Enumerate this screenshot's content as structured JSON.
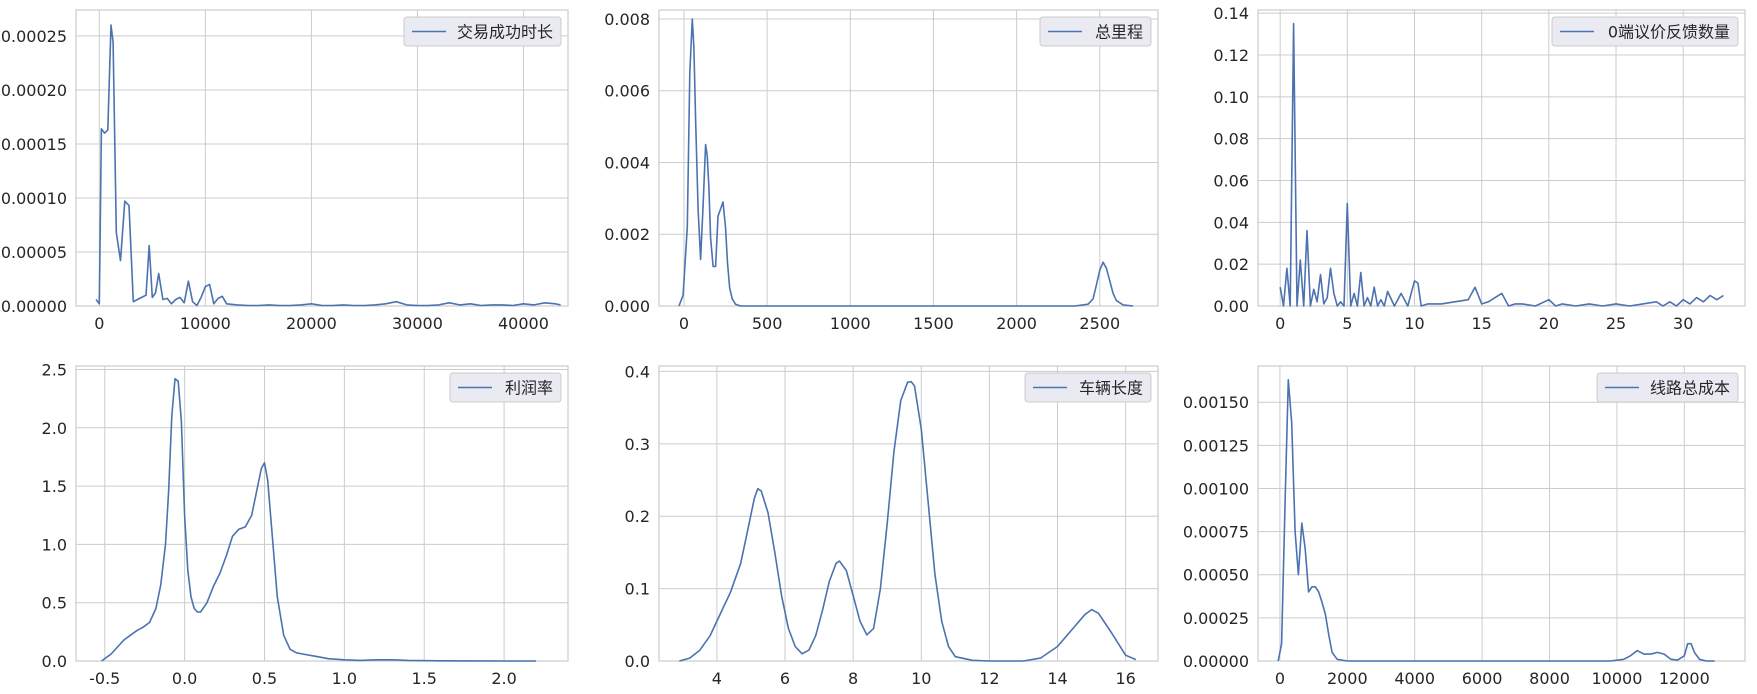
{
  "chart_data": [
    {
      "type": "line",
      "legend": "交易成功时长",
      "xticks": [
        "0",
        "10000",
        "20000",
        "30000",
        "40000"
      ],
      "xtick_values": [
        0,
        10000,
        20000,
        30000,
        40000
      ],
      "yticks": [
        "0.00000",
        "0.00005",
        "0.00010",
        "0.00015",
        "0.00020",
        "0.00025"
      ],
      "ytick_values": [
        0,
        5e-05,
        0.0001,
        0.00015,
        0.0002,
        0.00025
      ],
      "xlim": [
        -2200,
        44200
      ],
      "ylim": [
        0,
        0.000274
      ],
      "legend_position": "top-right",
      "color": "#4c72b0",
      "series": [
        {
          "x": [
            -300,
            0,
            200,
            500,
            800,
            1100,
            1300,
            1600,
            2000,
            2400,
            2800,
            3200,
            3600,
            4000,
            4400,
            4700,
            5000,
            5300,
            5600,
            6000,
            6400,
            6800,
            7200,
            7600,
            8000,
            8400,
            8800,
            9200,
            9600,
            10000,
            10400,
            10800,
            11200,
            11600,
            12000,
            13000,
            14000,
            15000,
            16000,
            17000,
            18000,
            19000,
            20000,
            21000,
            22000,
            23000,
            24000,
            25000,
            26000,
            27000,
            28000,
            29000,
            30000,
            31000,
            32000,
            33000,
            34000,
            35000,
            36000,
            37000,
            38000,
            39000,
            40000,
            41000,
            42000,
            43000,
            43500
          ],
          "y": [
            6e-06,
            2e-06,
            0.000164,
            0.00016,
            0.000163,
            0.00026,
            0.000244,
            6.8e-05,
            4.2e-05,
            9.7e-05,
            9.3e-05,
            4e-06,
            6e-06,
            8e-06,
            1e-05,
            5.6e-05,
            8e-06,
            1.2e-05,
            3e-05,
            6e-06,
            7e-06,
            2e-06,
            6e-06,
            8e-06,
            3e-06,
            2.3e-05,
            4e-06,
            5e-07,
            8e-06,
            1.8e-05,
            2e-05,
            2e-06,
            7e-06,
            9e-06,
            2e-06,
            1e-06,
            5e-07,
            5e-07,
            1e-06,
            5e-07,
            5e-07,
            1e-06,
            2e-06,
            5e-07,
            5e-07,
            1e-06,
            5e-07,
            5e-07,
            1e-06,
            2e-06,
            4e-06,
            1e-06,
            5e-07,
            5e-07,
            1e-06,
            3e-06,
            1e-06,
            2e-06,
            5e-07,
            1e-06,
            1e-06,
            5e-07,
            2e-06,
            1e-06,
            3e-06,
            2e-06,
            1e-06
          ]
        }
      ]
    },
    {
      "type": "line",
      "legend": "总里程",
      "xticks": [
        "0",
        "500",
        "1000",
        "1500",
        "2000",
        "2500"
      ],
      "xtick_values": [
        0,
        500,
        1000,
        1500,
        2000,
        2500
      ],
      "yticks": [
        "0.000",
        "0.002",
        "0.004",
        "0.006",
        "0.008"
      ],
      "ytick_values": [
        0,
        0.002,
        0.004,
        0.006,
        0.008
      ],
      "xlim": [
        -150,
        2850
      ],
      "ylim": [
        0,
        0.00825
      ],
      "legend_position": "top-right",
      "color": "#4c72b0",
      "series": [
        {
          "x": [
            -30,
            -5,
            20,
            35,
            50,
            60,
            70,
            85,
            100,
            115,
            130,
            140,
            150,
            160,
            175,
            190,
            205,
            220,
            235,
            250,
            262,
            275,
            290,
            310,
            340,
            400,
            600,
            1000,
            1500,
            2000,
            2350,
            2430,
            2460,
            2480,
            2500,
            2520,
            2540,
            2560,
            2580,
            2600,
            2640,
            2700
          ],
          "y": [
            0.0,
            0.0003,
            0.0022,
            0.0065,
            0.008,
            0.0072,
            0.0052,
            0.0027,
            0.0013,
            0.0028,
            0.0045,
            0.0042,
            0.0033,
            0.0019,
            0.0011,
            0.0011,
            0.0025,
            0.0027,
            0.0029,
            0.0022,
            0.0012,
            0.0005,
            0.0002,
            5e-05,
            0.0,
            0.0,
            0.0,
            0.0,
            0.0,
            0.0,
            0.0,
            5e-05,
            0.0002,
            0.0006,
            0.001,
            0.00122,
            0.00105,
            0.0007,
            0.00035,
            0.00015,
            3e-05,
            0.0
          ]
        }
      ]
    },
    {
      "type": "line",
      "legend": "0端议价反馈数量",
      "xticks": [
        "0",
        "5",
        "10",
        "15",
        "20",
        "25",
        "30"
      ],
      "xtick_values": [
        0,
        5,
        10,
        15,
        20,
        25,
        30
      ],
      "yticks": [
        "0.00",
        "0.02",
        "0.04",
        "0.06",
        "0.08",
        "0.10",
        "0.12",
        "0.14"
      ],
      "ytick_values": [
        0,
        0.02,
        0.04,
        0.06,
        0.08,
        0.1,
        0.12,
        0.14
      ],
      "xlim": [
        -1.65,
        34.6
      ],
      "ylim": [
        0,
        0.1415
      ],
      "legend_position": "top-right",
      "color": "#4c72b0",
      "series": [
        {
          "x": [
            0,
            0.25,
            0.5,
            0.75,
            1.0,
            1.25,
            1.5,
            1.75,
            2.0,
            2.25,
            2.5,
            2.75,
            3.0,
            3.25,
            3.5,
            3.75,
            4.0,
            4.25,
            4.5,
            4.75,
            5.0,
            5.25,
            5.5,
            5.75,
            6.0,
            6.25,
            6.5,
            6.75,
            7.0,
            7.25,
            7.5,
            7.75,
            8.0,
            8.5,
            9.0,
            9.5,
            10.0,
            10.25,
            10.5,
            11,
            12,
            13,
            14,
            14.5,
            15,
            15.5,
            16,
            16.5,
            17,
            17.5,
            18,
            19,
            20,
            20.5,
            21,
            22,
            23,
            24,
            25,
            26,
            27,
            28,
            28.5,
            29,
            29.5,
            30,
            30.5,
            31,
            31.5,
            32,
            32.5,
            33
          ],
          "y": [
            0.009,
            0.0,
            0.018,
            0.0,
            0.135,
            0.0,
            0.022,
            0.0,
            0.036,
            0.0,
            0.008,
            0.002,
            0.015,
            0.001,
            0.004,
            0.018,
            0.006,
            0.0,
            0.002,
            0.0,
            0.049,
            0.0,
            0.006,
            0.0,
            0.016,
            0.0,
            0.004,
            0.0,
            0.009,
            0.0,
            0.003,
            0.0,
            0.007,
            0.0,
            0.006,
            0.0,
            0.012,
            0.011,
            0.0,
            0.001,
            0.001,
            0.002,
            0.003,
            0.009,
            0.001,
            0.002,
            0.004,
            0.006,
            0.0,
            0.001,
            0.001,
            0.0,
            0.003,
            0.0,
            0.001,
            0.0,
            0.001,
            0.0,
            0.001,
            0.0,
            0.001,
            0.002,
            0.0,
            0.002,
            0.0,
            0.003,
            0.001,
            0.004,
            0.002,
            0.005,
            0.003,
            0.005
          ]
        }
      ]
    },
    {
      "type": "line",
      "legend": "利润率",
      "xticks": [
        "-0.5",
        "0.0",
        "0.5",
        "1.0",
        "1.5",
        "2.0"
      ],
      "xtick_values": [
        -0.5,
        0.0,
        0.5,
        1.0,
        1.5,
        2.0
      ],
      "yticks": [
        "0.0",
        "0.5",
        "1.0",
        "1.5",
        "2.0",
        "2.5"
      ],
      "ytick_values": [
        0,
        0.5,
        1.0,
        1.5,
        2.0,
        2.5
      ],
      "xlim": [
        -0.68,
        2.4
      ],
      "ylim": [
        0,
        2.53
      ],
      "legend_position": "top-right",
      "color": "#4c72b0",
      "series": [
        {
          "x": [
            -0.52,
            -0.46,
            -0.42,
            -0.38,
            -0.34,
            -0.3,
            -0.26,
            -0.22,
            -0.18,
            -0.15,
            -0.12,
            -0.1,
            -0.08,
            -0.06,
            -0.04,
            -0.02,
            0.0,
            0.02,
            0.04,
            0.06,
            0.08,
            0.1,
            0.14,
            0.18,
            0.22,
            0.26,
            0.3,
            0.34,
            0.38,
            0.42,
            0.45,
            0.48,
            0.5,
            0.52,
            0.55,
            0.58,
            0.62,
            0.66,
            0.7,
            0.76,
            0.82,
            0.9,
            1.0,
            1.1,
            1.2,
            1.3,
            1.4,
            1.6,
            1.8,
            2.0,
            2.2
          ],
          "y": [
            0.0,
            0.06,
            0.12,
            0.18,
            0.22,
            0.26,
            0.29,
            0.33,
            0.45,
            0.65,
            1.0,
            1.45,
            2.1,
            2.42,
            2.4,
            2.05,
            1.25,
            0.78,
            0.55,
            0.45,
            0.42,
            0.42,
            0.5,
            0.64,
            0.75,
            0.9,
            1.07,
            1.13,
            1.15,
            1.25,
            1.45,
            1.65,
            1.7,
            1.55,
            1.05,
            0.55,
            0.22,
            0.1,
            0.07,
            0.055,
            0.04,
            0.02,
            0.01,
            0.005,
            0.01,
            0.01,
            0.005,
            0.002,
            0.001,
            0.0,
            0.0
          ]
        }
      ]
    },
    {
      "type": "line",
      "legend": "车辆长度",
      "xticks": [
        "4",
        "6",
        "8",
        "10",
        "12",
        "14",
        "16"
      ],
      "xtick_values": [
        4,
        6,
        8,
        10,
        12,
        14,
        16
      ],
      "yticks": [
        "0.0",
        "0.1",
        "0.2",
        "0.3",
        "0.4"
      ],
      "ytick_values": [
        0,
        0.1,
        0.2,
        0.3,
        0.4
      ],
      "xlim": [
        2.3,
        16.95
      ],
      "ylim": [
        0,
        0.4075
      ],
      "legend_position": "top-right",
      "color": "#4c72b0",
      "series": [
        {
          "x": [
            2.9,
            3.2,
            3.5,
            3.8,
            4.1,
            4.4,
            4.7,
            4.9,
            5.1,
            5.2,
            5.3,
            5.5,
            5.7,
            5.9,
            6.1,
            6.3,
            6.5,
            6.7,
            6.9,
            7.1,
            7.3,
            7.5,
            7.6,
            7.8,
            8.0,
            8.2,
            8.4,
            8.6,
            8.8,
            9.0,
            9.2,
            9.4,
            9.6,
            9.7,
            9.8,
            10.0,
            10.2,
            10.4,
            10.6,
            10.8,
            11.0,
            11.5,
            12.0,
            13.0,
            13.5,
            14.0,
            14.4,
            14.8,
            15.0,
            15.2,
            15.6,
            16.0,
            16.3
          ],
          "y": [
            0.0,
            0.004,
            0.015,
            0.035,
            0.065,
            0.095,
            0.135,
            0.18,
            0.225,
            0.238,
            0.235,
            0.205,
            0.15,
            0.09,
            0.045,
            0.02,
            0.01,
            0.015,
            0.035,
            0.07,
            0.11,
            0.135,
            0.138,
            0.125,
            0.09,
            0.055,
            0.036,
            0.045,
            0.1,
            0.19,
            0.29,
            0.36,
            0.385,
            0.386,
            0.38,
            0.32,
            0.22,
            0.12,
            0.055,
            0.02,
            0.006,
            0.001,
            0.0,
            0.0,
            0.004,
            0.02,
            0.042,
            0.064,
            0.071,
            0.066,
            0.038,
            0.008,
            0.002
          ]
        }
      ]
    },
    {
      "type": "line",
      "legend": "线路总成本",
      "xticks": [
        "0",
        "2000",
        "4000",
        "6000",
        "8000",
        "10000",
        "12000"
      ],
      "xtick_values": [
        0,
        2000,
        4000,
        6000,
        8000,
        10000,
        12000
      ],
      "yticks": [
        "0.00000",
        "0.00025",
        "0.00050",
        "0.00075",
        "0.00100",
        "0.00125",
        "0.00150"
      ],
      "ytick_values": [
        0,
        0.00025,
        0.0005,
        0.00075,
        0.001,
        0.00125,
        0.0015
      ],
      "xlim": [
        -650,
        13800
      ],
      "ylim": [
        0,
        0.00171
      ],
      "legend_position": "top-right",
      "color": "#4c72b0",
      "series": [
        {
          "x": [
            -50,
            50,
            150,
            250,
            350,
            450,
            550,
            650,
            750,
            850,
            950,
            1050,
            1150,
            1250,
            1350,
            1450,
            1550,
            1700,
            2000,
            3000,
            4000,
            6000,
            8000,
            9800,
            10200,
            10400,
            10600,
            10800,
            11000,
            11200,
            11400,
            11600,
            11800,
            12000,
            12100,
            12200,
            12300,
            12450,
            12650,
            12900
          ],
          "y": [
            0.0,
            0.0001,
            0.0009,
            0.00163,
            0.00138,
            0.00075,
            0.0005,
            0.0008,
            0.00065,
            0.0004,
            0.00043,
            0.00043,
            0.0004,
            0.00034,
            0.00027,
            0.00015,
            5e-05,
            1e-05,
            0.0,
            0.0,
            0.0,
            0.0,
            0.0,
            0.0,
            1e-05,
            3e-05,
            6e-05,
            4e-05,
            4e-05,
            5e-05,
            4e-05,
            1e-05,
            5e-06,
            3e-05,
            0.0001,
            0.0001,
            5e-05,
            1e-05,
            0.0,
            0.0
          ]
        }
      ]
    }
  ]
}
